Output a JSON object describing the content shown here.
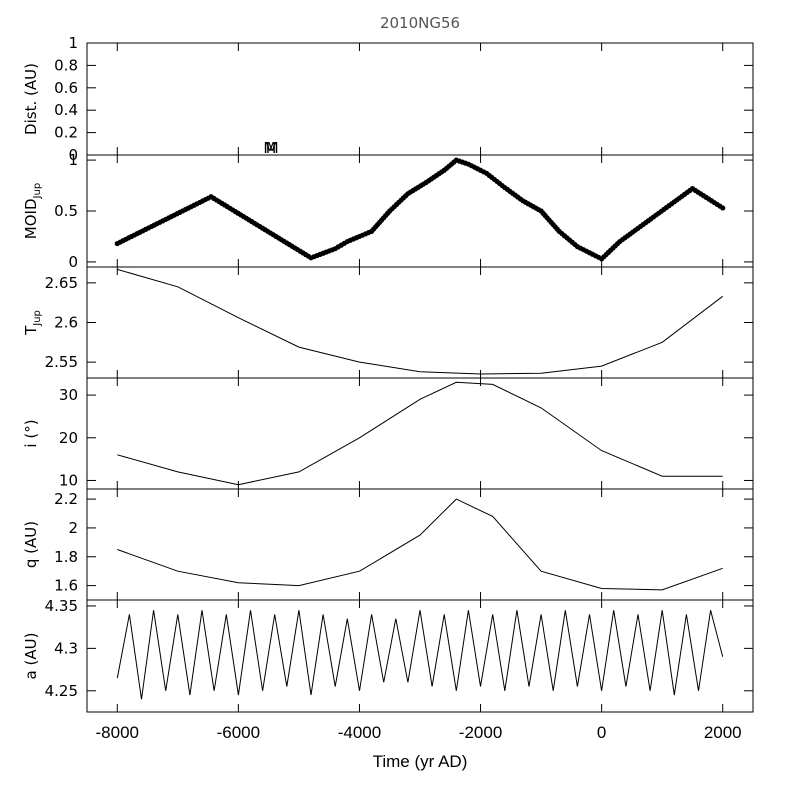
{
  "chart_data": {
    "title": "2010NG56",
    "type": "line",
    "xlabel": "Time (yr AD)",
    "xlim": [
      -8500,
      2500
    ],
    "xticks": [
      "-8000",
      "-6000",
      "-4000",
      "-2000",
      "0",
      "2000"
    ],
    "panels": [
      {
        "key": "dist",
        "ylabel": "Dist. (AU)",
        "ylim": [
          0,
          1
        ],
        "yticks": [
          "0",
          "0.2",
          "0.4",
          "0.6",
          "0.8",
          "1"
        ],
        "marker_glyph": "M",
        "marker_x": [
          -5480,
          -5440
        ],
        "series": []
      },
      {
        "key": "moid",
        "ylabel": "MOID",
        "ylabel_sub": "Jup",
        "ylim": [
          -0.05,
          1.05
        ],
        "yticks": [
          "0",
          "0.5",
          "1"
        ],
        "style": "points",
        "x": [
          -8000,
          -6450,
          -4800,
          -4400,
          -4200,
          -3800,
          -3500,
          -3200,
          -2900,
          -2600,
          -2400,
          -2200,
          -1900,
          -1600,
          -1300,
          -1000,
          -700,
          -400,
          0,
          300,
          1500,
          2000
        ],
        "y": [
          0.18,
          0.64,
          0.04,
          0.13,
          0.2,
          0.3,
          0.5,
          0.67,
          0.78,
          0.9,
          1.0,
          0.96,
          0.87,
          0.73,
          0.6,
          0.5,
          0.3,
          0.15,
          0.03,
          0.2,
          0.72,
          0.53
        ]
      },
      {
        "key": "tjup",
        "ylabel": "T",
        "ylabel_sub": "Jup",
        "ylim": [
          2.53,
          2.67
        ],
        "yticks": [
          "2.55",
          "2.6",
          "2.65"
        ],
        "x": [
          -8000,
          -7000,
          -6000,
          -5000,
          -4000,
          -3000,
          -2000,
          -1000,
          0,
          1000,
          2000
        ],
        "y": [
          2.667,
          2.645,
          2.606,
          2.569,
          2.55,
          2.538,
          2.535,
          2.536,
          2.545,
          2.575,
          2.633
        ]
      },
      {
        "key": "inc",
        "ylabel": "i (°)",
        "ylim": [
          8,
          34
        ],
        "yticks": [
          "10",
          "20",
          "30"
        ],
        "x": [
          -8000,
          -7000,
          -6000,
          -5000,
          -4000,
          -3000,
          -2400,
          -1800,
          -1000,
          0,
          1000,
          2000
        ],
        "y": [
          16,
          12,
          9,
          12,
          20,
          29,
          33,
          32.5,
          27,
          17,
          11,
          11
        ]
      },
      {
        "key": "q",
        "ylabel": "q (AU)",
        "ylim": [
          1.5,
          2.27
        ],
        "yticks": [
          "1.6",
          "1.8",
          "2",
          "2.2"
        ],
        "x": [
          -8000,
          -7000,
          -6000,
          -5000,
          -4000,
          -3000,
          -2400,
          -1800,
          -1000,
          0,
          1000,
          2000
        ],
        "y": [
          1.85,
          1.7,
          1.62,
          1.6,
          1.7,
          1.95,
          2.2,
          2.08,
          1.7,
          1.58,
          1.57,
          1.72
        ]
      },
      {
        "key": "a",
        "ylabel": "a (AU)",
        "ylim": [
          4.225,
          4.357
        ],
        "yticks": [
          "4.25",
          "4.3",
          "4.35"
        ],
        "x": [
          -8000,
          -7800,
          -7600,
          -7400,
          -7200,
          -7000,
          -6800,
          -6600,
          -6400,
          -6200,
          -6000,
          -5800,
          -5600,
          -5400,
          -5200,
          -5000,
          -4800,
          -4600,
          -4400,
          -4200,
          -4000,
          -3800,
          -3600,
          -3400,
          -3200,
          -3000,
          -2800,
          -2600,
          -2400,
          -2200,
          -2000,
          -1800,
          -1600,
          -1400,
          -1200,
          -1000,
          -800,
          -600,
          -400,
          -200,
          0,
          200,
          400,
          600,
          800,
          1000,
          1200,
          1400,
          1600,
          1800,
          2000
        ],
        "y": [
          4.265,
          4.34,
          4.24,
          4.345,
          4.25,
          4.34,
          4.245,
          4.345,
          4.25,
          4.34,
          4.245,
          4.345,
          4.25,
          4.34,
          4.255,
          4.345,
          4.245,
          4.34,
          4.255,
          4.335,
          4.25,
          4.34,
          4.26,
          4.335,
          4.26,
          4.345,
          4.255,
          4.34,
          4.25,
          4.345,
          4.255,
          4.34,
          4.25,
          4.345,
          4.255,
          4.34,
          4.25,
          4.345,
          4.255,
          4.34,
          4.25,
          4.345,
          4.255,
          4.34,
          4.25,
          4.345,
          4.245,
          4.34,
          4.25,
          4.345,
          4.29
        ]
      }
    ]
  }
}
